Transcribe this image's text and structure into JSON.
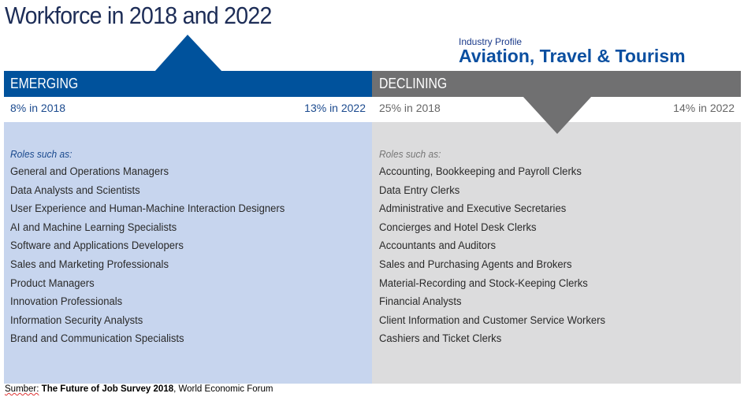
{
  "title": "Workforce in 2018 and 2022",
  "industry": {
    "label": "Industry Profile",
    "name": "Aviation, Travel & Tourism"
  },
  "emerging": {
    "label": "EMERGING",
    "pct_2018": "8% in 2018",
    "pct_2022": "13% in 2022",
    "roles_heading": "Roles such as:",
    "roles": [
      "General and Operations Managers",
      "Data Analysts and Scientists",
      "User Experience and Human-Machine Interaction Designers",
      "AI and Machine Learning Specialists",
      "Software and Applications Developers",
      "Sales and Marketing Professionals",
      "Product Managers",
      "Innovation Professionals",
      "Information Security Analysts",
      "Brand and Communication Specialists"
    ]
  },
  "declining": {
    "label": "DECLINING",
    "pct_2018": "25% in 2018",
    "pct_2022": "14% in 2022",
    "roles_heading": "Roles such as:",
    "roles": [
      "Accounting,  Bookkeeping and Payroll Clerks",
      "Data Entry Clerks",
      "Administrative and Executive Secretaries",
      "Concierges and Hotel Desk Clerks",
      "Accountants and Auditors",
      "Sales and Purchasing Agents and Brokers",
      "Material-Recording and Stock-Keeping Clerks",
      "Financial Analysts",
      "Client Information and Customer Service Workers",
      "Cashiers and Ticket Clerks"
    ]
  },
  "footnote": {
    "prefix": "Sumber:",
    "source": "The Future of Job Survey 2018",
    "suffix": ", World Economic Forum"
  },
  "colors": {
    "emerging": "#00529c",
    "declining": "#707071",
    "emerging_panel": "#c7d5ee",
    "declining_panel": "#dcdcdd"
  }
}
